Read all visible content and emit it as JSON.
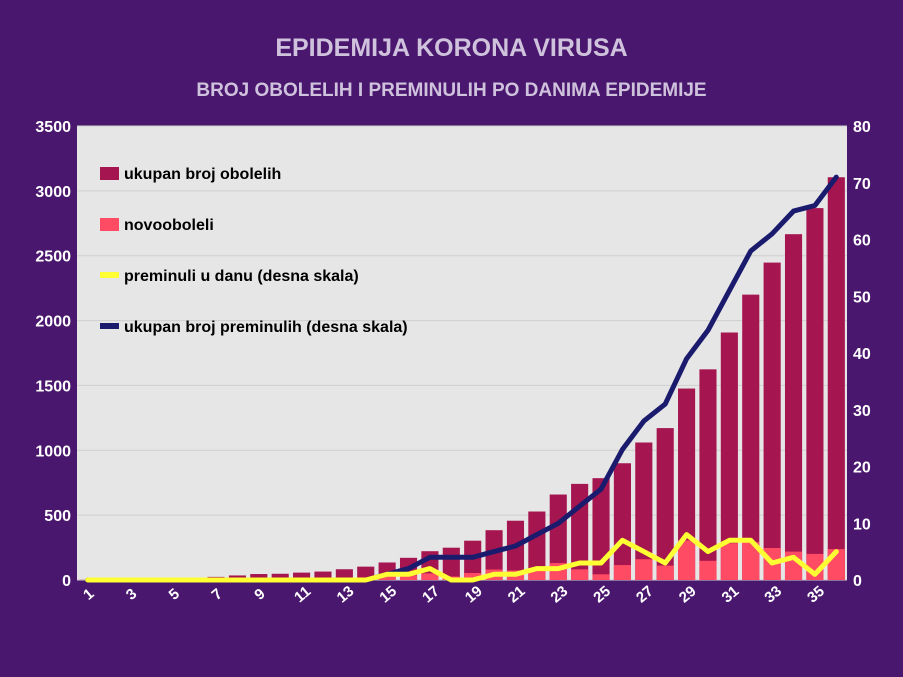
{
  "header": {
    "title": "EPIDEMIJA KORONA VIRUSA",
    "subtitle": "BROJ OBOLELIH I PREMINULIH PO DANIMA EPIDEMIJE"
  },
  "chart_data": {
    "type": "bar",
    "title": "EPIDEMIJA KORONA VIRUSA",
    "subtitle": "BROJ OBOLELIH I PREMINULIH PO DANIMA EPIDEMIJE",
    "x": [
      1,
      2,
      3,
      4,
      5,
      6,
      7,
      8,
      9,
      10,
      11,
      12,
      13,
      14,
      15,
      16,
      17,
      18,
      19,
      20,
      21,
      22,
      23,
      24,
      25,
      26,
      27,
      28,
      29,
      30,
      31,
      32,
      33,
      34,
      35,
      36
    ],
    "x_tick_labels": [
      "1",
      "3",
      "5",
      "7",
      "9",
      "11",
      "13",
      "15",
      "17",
      "19",
      "21",
      "23",
      "25",
      "27",
      "29",
      "31",
      "33",
      "35"
    ],
    "ylim_left": [
      0,
      3500
    ],
    "y_ticks_left": [
      "0",
      "500",
      "1000",
      "1500",
      "2000",
      "2500",
      "3000",
      "3500"
    ],
    "ylim_right": [
      0,
      80
    ],
    "y_ticks_right": [
      "0",
      "10",
      "20",
      "30",
      "40",
      "50",
      "60",
      "70",
      "80"
    ],
    "grid": true,
    "legend_position": "top-left inside",
    "series": [
      {
        "name": "ukupan broj obolelih",
        "kind": "bar",
        "axis": "left",
        "color": "#a5154f",
        "values": [
          1,
          1,
          1,
          1,
          12,
          18,
          24,
          35,
          46,
          48,
          57,
          65,
          83,
          103,
          135,
          171,
          222,
          249,
          303,
          384,
          457,
          528,
          659,
          741,
          785,
          900,
          1060,
          1171,
          1476,
          1624,
          1908,
          2200,
          2447,
          2666,
          2867,
          3105
        ]
      },
      {
        "name": "novooboleli",
        "kind": "bar",
        "axis": "left",
        "color": "#ff4b63",
        "values": [
          1,
          0,
          0,
          0,
          11,
          6,
          6,
          11,
          11,
          2,
          9,
          8,
          18,
          20,
          32,
          36,
          51,
          27,
          54,
          81,
          73,
          71,
          131,
          82,
          44,
          115,
          160,
          111,
          305,
          148,
          284,
          292,
          247,
          219,
          201,
          238
        ]
      },
      {
        "name": "preminuli u danu (desna skala)",
        "kind": "line",
        "axis": "right",
        "color": "#ffff33",
        "values": [
          0,
          0,
          0,
          0,
          0,
          0,
          0,
          0,
          0,
          0,
          0,
          0,
          0,
          0,
          1,
          1,
          2,
          0,
          0,
          1,
          1,
          2,
          2,
          3,
          3,
          7,
          5,
          3,
          8,
          5,
          7,
          7,
          3,
          4,
          1,
          5
        ]
      },
      {
        "name": "ukupan broj preminulih (desna skala)",
        "kind": "line",
        "axis": "right",
        "color": "#1b1b6e",
        "values": [
          0,
          0,
          0,
          0,
          0,
          0,
          0,
          0,
          0,
          0,
          0,
          0,
          0,
          0,
          1,
          2,
          4,
          4,
          4,
          5,
          6,
          8,
          10,
          13,
          16,
          23,
          28,
          31,
          39,
          44,
          51,
          58,
          61,
          65,
          66,
          71
        ]
      }
    ]
  }
}
